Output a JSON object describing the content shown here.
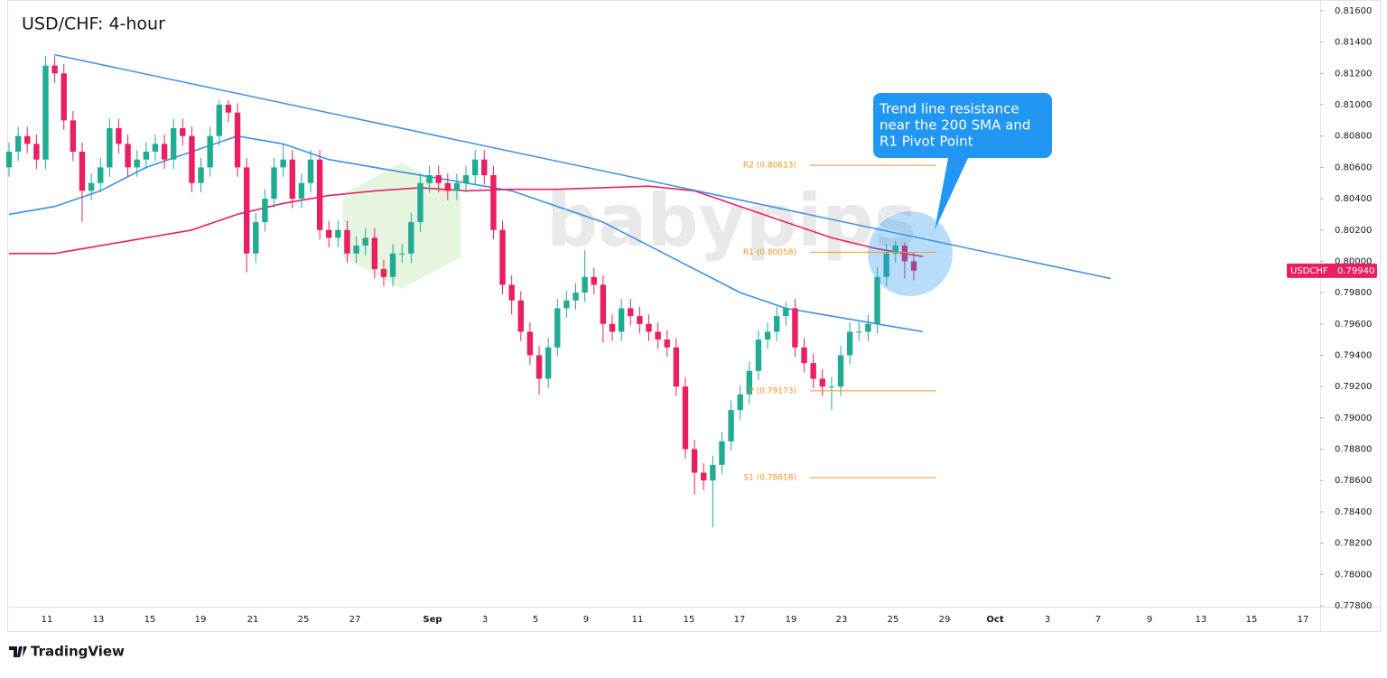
{
  "chart_data": {
    "type": "candlestick",
    "title": "USD/CHF: 4-hour",
    "watermark": "babypips",
    "footer": "TradingView",
    "symbol": "USDCHF",
    "last_price": {
      "value": 0.7994,
      "label": "0.79940"
    },
    "up_color": "#22ab94",
    "down_color": "#e91e63",
    "ylim": [
      0.77794,
      0.81669
    ],
    "yticks": [
      {
        "value": 0.778,
        "label": "0.77800"
      },
      {
        "value": 0.78,
        "label": "0.78000"
      },
      {
        "value": 0.782,
        "label": "0.78200"
      },
      {
        "value": 0.784,
        "label": "0.78400"
      },
      {
        "value": 0.786,
        "label": "0.78600"
      },
      {
        "value": 0.788,
        "label": "0.78800"
      },
      {
        "value": 0.79,
        "label": "0.79000"
      },
      {
        "value": 0.792,
        "label": "0.79200"
      },
      {
        "value": 0.794,
        "label": "0.79400"
      },
      {
        "value": 0.796,
        "label": "0.79600"
      },
      {
        "value": 0.798,
        "label": "0.79800"
      },
      {
        "value": 0.8,
        "label": "0.80000"
      },
      {
        "value": 0.802,
        "label": "0.80200"
      },
      {
        "value": 0.804,
        "label": "0.80400"
      },
      {
        "value": 0.806,
        "label": "0.80600"
      },
      {
        "value": 0.808,
        "label": "0.80800"
      },
      {
        "value": 0.81,
        "label": "0.81000"
      },
      {
        "value": 0.812,
        "label": "0.81200"
      },
      {
        "value": 0.814,
        "label": "0.81400"
      },
      {
        "value": 0.816,
        "label": "0.81600"
      }
    ],
    "xtick_labels": [
      "11",
      "13",
      "15",
      "19",
      "21",
      "25",
      "27",
      "Sep",
      "3",
      "5",
      "9",
      "11",
      "15",
      "17",
      "19",
      "23",
      "25",
      "29",
      "Oct",
      "3",
      "7",
      "9",
      "13",
      "15",
      "17"
    ],
    "ohlc": [
      [
        0.806,
        0.8076,
        0.8054,
        0.807
      ],
      [
        0.807,
        0.8086,
        0.8064,
        0.808
      ],
      [
        0.808,
        0.8086,
        0.8069,
        0.8075
      ],
      [
        0.8075,
        0.8081,
        0.8059,
        0.8065
      ],
      [
        0.8065,
        0.8131,
        0.8059,
        0.8125
      ],
      [
        0.8125,
        0.8131,
        0.8114,
        0.812
      ],
      [
        0.812,
        0.8126,
        0.8084,
        0.809
      ],
      [
        0.809,
        0.8096,
        0.8064,
        0.807
      ],
      [
        0.807,
        0.8076,
        0.8025,
        0.8045
      ],
      [
        0.8045,
        0.8056,
        0.8039,
        0.805
      ],
      [
        0.805,
        0.8066,
        0.8044,
        0.806
      ],
      [
        0.806,
        0.8091,
        0.8054,
        0.8085
      ],
      [
        0.8085,
        0.8091,
        0.8069,
        0.8075
      ],
      [
        0.8075,
        0.8081,
        0.8054,
        0.806
      ],
      [
        0.806,
        0.8071,
        0.8054,
        0.8065
      ],
      [
        0.8065,
        0.8076,
        0.8059,
        0.807
      ],
      [
        0.807,
        0.8081,
        0.8064,
        0.8075
      ],
      [
        0.8075,
        0.8081,
        0.8059,
        0.8065
      ],
      [
        0.8065,
        0.8091,
        0.8059,
        0.8085
      ],
      [
        0.8085,
        0.8091,
        0.8074,
        0.808
      ],
      [
        0.808,
        0.8086,
        0.8044,
        0.805
      ],
      [
        0.805,
        0.8066,
        0.8044,
        0.806
      ],
      [
        0.806,
        0.8086,
        0.8054,
        0.808
      ],
      [
        0.808,
        0.8103,
        0.8074,
        0.81
      ],
      [
        0.81,
        0.8103,
        0.8089,
        0.8095
      ],
      [
        0.8095,
        0.8101,
        0.8054,
        0.806
      ],
      [
        0.806,
        0.8066,
        0.7993,
        0.8005
      ],
      [
        0.8005,
        0.8031,
        0.7999,
        0.8025
      ],
      [
        0.8025,
        0.8046,
        0.8019,
        0.804
      ],
      [
        0.804,
        0.8066,
        0.8034,
        0.806
      ],
      [
        0.806,
        0.8075,
        0.8054,
        0.8065
      ],
      [
        0.8065,
        0.8071,
        0.8034,
        0.804
      ],
      [
        0.804,
        0.8056,
        0.8034,
        0.805
      ],
      [
        0.805,
        0.8071,
        0.8044,
        0.8065
      ],
      [
        0.8065,
        0.8071,
        0.8014,
        0.802
      ],
      [
        0.802,
        0.8026,
        0.8009,
        0.8015
      ],
      [
        0.8015,
        0.8026,
        0.8009,
        0.802
      ],
      [
        0.802,
        0.8026,
        0.7999,
        0.8005
      ],
      [
        0.8005,
        0.8016,
        0.7999,
        0.801
      ],
      [
        0.801,
        0.8021,
        0.8004,
        0.8015
      ],
      [
        0.8015,
        0.8021,
        0.7989,
        0.7995
      ],
      [
        0.7995,
        0.8001,
        0.7984,
        0.799
      ],
      [
        0.799,
        0.8011,
        0.7984,
        0.8005
      ],
      [
        0.8005,
        0.8011,
        0.7999,
        0.8005
      ],
      [
        0.8005,
        0.8031,
        0.7999,
        0.8025
      ],
      [
        0.8025,
        0.8056,
        0.8019,
        0.805
      ],
      [
        0.805,
        0.8061,
        0.8044,
        0.8055
      ],
      [
        0.8055,
        0.8061,
        0.8044,
        0.805
      ],
      [
        0.805,
        0.8056,
        0.8039,
        0.8045
      ],
      [
        0.8045,
        0.8056,
        0.8039,
        0.805
      ],
      [
        0.805,
        0.8061,
        0.8044,
        0.8055
      ],
      [
        0.8055,
        0.8071,
        0.8049,
        0.8065
      ],
      [
        0.8065,
        0.8071,
        0.8049,
        0.8055
      ],
      [
        0.8055,
        0.8061,
        0.8014,
        0.802
      ],
      [
        0.802,
        0.8026,
        0.7979,
        0.7985
      ],
      [
        0.7985,
        0.7991,
        0.7966,
        0.7975
      ],
      [
        0.7975,
        0.7981,
        0.7949,
        0.7955
      ],
      [
        0.7955,
        0.7961,
        0.7934,
        0.794
      ],
      [
        0.794,
        0.7946,
        0.7915,
        0.7925
      ],
      [
        0.7925,
        0.7951,
        0.7919,
        0.7945
      ],
      [
        0.7945,
        0.7976,
        0.7939,
        0.797
      ],
      [
        0.797,
        0.7981,
        0.7964,
        0.7975
      ],
      [
        0.7975,
        0.7986,
        0.7969,
        0.798
      ],
      [
        0.798,
        0.8007,
        0.7974,
        0.799
      ],
      [
        0.799,
        0.7996,
        0.7979,
        0.7985
      ],
      [
        0.7985,
        0.7991,
        0.7948,
        0.796
      ],
      [
        0.796,
        0.7966,
        0.7949,
        0.7955
      ],
      [
        0.7955,
        0.7976,
        0.7949,
        0.797
      ],
      [
        0.797,
        0.7976,
        0.7959,
        0.7965
      ],
      [
        0.7965,
        0.7971,
        0.7954,
        0.796
      ],
      [
        0.796,
        0.7966,
        0.7949,
        0.7955
      ],
      [
        0.7955,
        0.7961,
        0.7944,
        0.795
      ],
      [
        0.795,
        0.7956,
        0.7939,
        0.7945
      ],
      [
        0.7945,
        0.7951,
        0.7914,
        0.792
      ],
      [
        0.792,
        0.7926,
        0.7874,
        0.788
      ],
      [
        0.788,
        0.7886,
        0.7851,
        0.7865
      ],
      [
        0.7865,
        0.7871,
        0.7854,
        0.786
      ],
      [
        0.786,
        0.7876,
        0.783,
        0.787
      ],
      [
        0.787,
        0.7891,
        0.7864,
        0.7885
      ],
      [
        0.7885,
        0.7911,
        0.7879,
        0.7905
      ],
      [
        0.7905,
        0.7921,
        0.7899,
        0.7915
      ],
      [
        0.7915,
        0.7936,
        0.7909,
        0.793
      ],
      [
        0.793,
        0.7956,
        0.7924,
        0.795
      ],
      [
        0.795,
        0.7961,
        0.7944,
        0.7955
      ],
      [
        0.7955,
        0.7971,
        0.7949,
        0.7965
      ],
      [
        0.7965,
        0.7974,
        0.7959,
        0.797
      ],
      [
        0.797,
        0.7976,
        0.7939,
        0.7945
      ],
      [
        0.7945,
        0.7951,
        0.7929,
        0.7935
      ],
      [
        0.7935,
        0.7941,
        0.7919,
        0.7925
      ],
      [
        0.7925,
        0.7931,
        0.7914,
        0.792
      ],
      [
        0.792,
        0.7926,
        0.7905,
        0.792
      ],
      [
        0.792,
        0.7946,
        0.7914,
        0.794
      ],
      [
        0.794,
        0.7961,
        0.7934,
        0.7955
      ],
      [
        0.7955,
        0.7961,
        0.7949,
        0.7955
      ],
      [
        0.7955,
        0.7966,
        0.7949,
        0.796
      ],
      [
        0.796,
        0.7996,
        0.7954,
        0.799
      ],
      [
        0.799,
        0.8011,
        0.7984,
        0.8005
      ],
      [
        0.8005,
        0.8013,
        0.7999,
        0.801
      ],
      [
        0.801,
        0.8012,
        0.7989,
        0.8
      ],
      [
        0.8,
        0.8006,
        0.7988,
        0.7994
      ]
    ],
    "lines": [
      {
        "color": "#3d8fe8",
        "values": [
          0.803,
          0.8035,
          0.8045,
          0.806,
          0.807,
          0.808,
          0.8075,
          0.8065,
          0.806,
          0.8055,
          0.805,
          0.8045,
          0.8035,
          0.8025,
          0.801,
          0.7995,
          0.798,
          0.797,
          0.7965,
          0.796,
          0.7955
        ]
      },
      {
        "color": "#e91e63",
        "values": [
          0.8005,
          0.8005,
          0.801,
          0.8015,
          0.802,
          0.803,
          0.8037,
          0.8042,
          0.8045,
          0.8047,
          0.8045,
          0.8046,
          0.8046,
          0.8047,
          0.8048,
          0.8045,
          0.8035,
          0.8025,
          0.8015,
          0.8008,
          0.8003
        ]
      }
    ],
    "trend_line": {
      "color": "#3d8fe8",
      "values": [
        0.8132,
        0.7989
      ]
    },
    "pivots": [
      {
        "value": 0.80613,
        "label": "R2 (0.80613)"
      },
      {
        "value": 0.80058,
        "label": "R1 (0.80058)"
      },
      {
        "value": 0.79173,
        "label": "P (0.79173)"
      },
      {
        "value": 0.78618,
        "label": "S1 (0.78618)"
      }
    ],
    "annotation": [
      "Trend line resistance",
      "near the 200 SMA and",
      "R1 Pivot Point"
    ]
  }
}
